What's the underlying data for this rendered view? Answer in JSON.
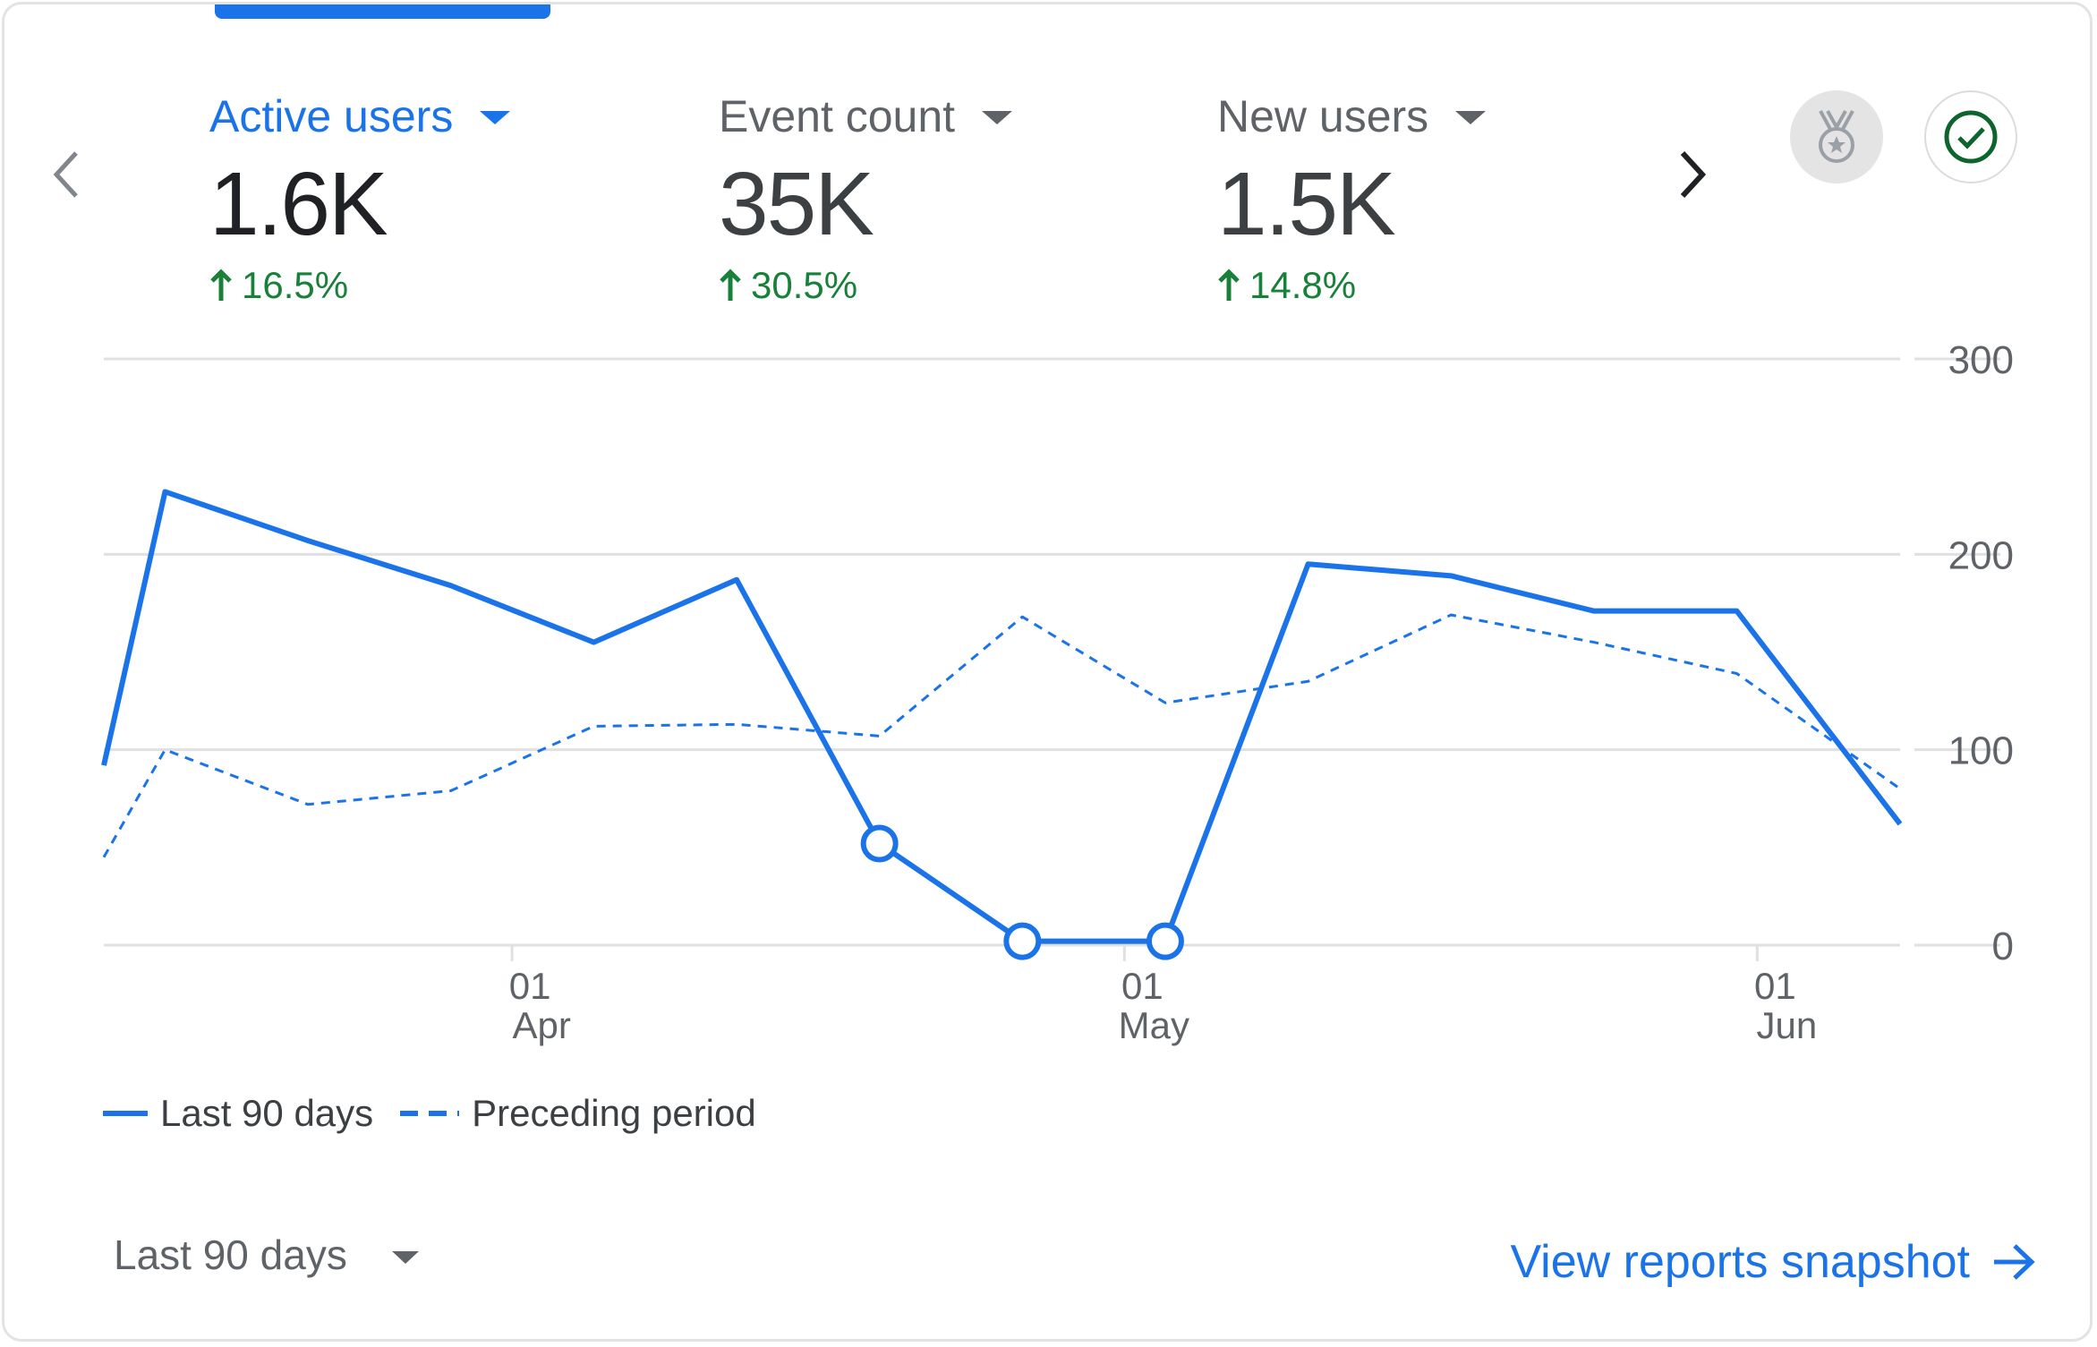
{
  "metrics": [
    {
      "label": "Active users",
      "value": "1.6K",
      "change": "16.5%",
      "selected": true
    },
    {
      "label": "Event count",
      "value": "35K",
      "change": "30.5%",
      "selected": false
    },
    {
      "label": "New users",
      "value": "1.5K",
      "change": "14.8%",
      "selected": false
    }
  ],
  "icons": {
    "prev": "chevron-left-icon",
    "next": "chevron-right-icon",
    "insights": "medal-icon",
    "status": "check-circle-icon",
    "change": "arrow-up-icon",
    "link": "arrow-right-icon"
  },
  "colors": {
    "accent": "#1a73e8",
    "positive": "#188038",
    "grid": "#e0e0e0",
    "axis_text": "#5f6368"
  },
  "chart_data": {
    "type": "line",
    "x": [
      "2025-03-12",
      "2025-03-15",
      "2025-03-22",
      "2025-03-29",
      "2025-04-05",
      "2025-04-12",
      "2025-04-19",
      "2025-04-26",
      "2025-05-03",
      "2025-05-10",
      "2025-05-17",
      "2025-05-24",
      "2025-05-31",
      "2025-06-08"
    ],
    "series": [
      {
        "name": "Last 90 days",
        "style": "solid",
        "values": [
          92,
          232,
          207,
          184,
          155,
          187,
          52,
          2,
          2,
          195,
          189,
          171,
          171,
          62
        ]
      },
      {
        "name": "Preceding period",
        "style": "dashed",
        "values": [
          45,
          100,
          72,
          79,
          112,
          113,
          107,
          168,
          124,
          135,
          169,
          155,
          139,
          80
        ]
      }
    ],
    "markers": [
      {
        "series": "Last 90 days",
        "x": "2025-04-19",
        "y": 52
      },
      {
        "series": "Last 90 days",
        "x": "2025-04-26",
        "y": 2
      },
      {
        "series": "Last 90 days",
        "x": "2025-05-03",
        "y": 2
      }
    ],
    "x_ticks": [
      {
        "date": "2025-04-01",
        "day": "01",
        "month": "Apr"
      },
      {
        "date": "2025-05-01",
        "day": "01",
        "month": "May"
      },
      {
        "date": "2025-06-01",
        "day": "01",
        "month": "Jun"
      }
    ],
    "y_ticks": [
      0,
      100,
      200,
      300
    ],
    "ylim": [
      0,
      300
    ],
    "grid": true,
    "legend": "bottom-left"
  },
  "legend": {
    "solid_label": "Last 90 days",
    "dashed_label": "Preceding period"
  },
  "footer": {
    "range_label": "Last 90 days",
    "snapshot_link": "View reports snapshot"
  }
}
